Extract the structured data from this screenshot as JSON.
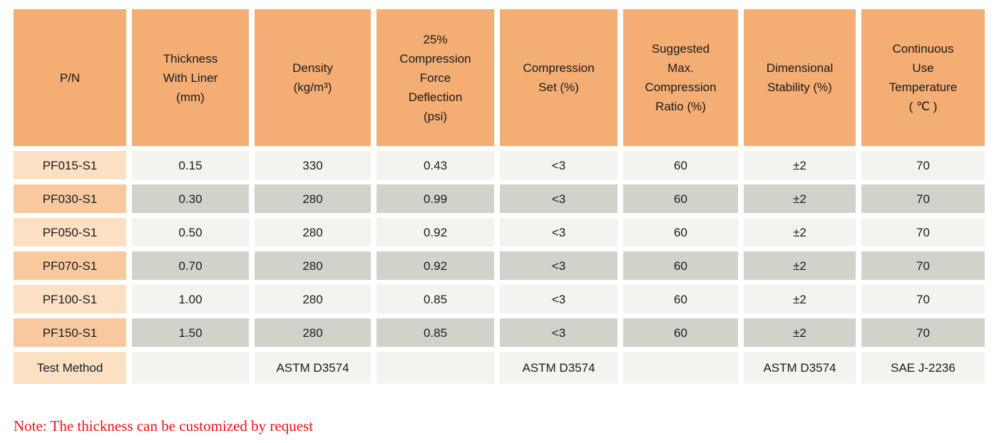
{
  "colors": {
    "header_orange": "#F4AD73",
    "peach_light": "#FCE0C3",
    "peach_medium": "#F8C99E",
    "gray_light": "#F3F3EF",
    "gray_dark": "#D2D2CB",
    "text_color": "#1B1B1B",
    "note_red": "#EE1111",
    "page_bg": "#FFFFFF"
  },
  "table": {
    "columns": [
      {
        "id": "pn",
        "label": "P/N"
      },
      {
        "id": "thickness-with-liner",
        "label": "Thickness\nWith Liner\n(mm)"
      },
      {
        "id": "density",
        "label": "Density\n(kg/m³)"
      },
      {
        "id": "compression-force-deflection",
        "label": "25%\nCompression\nForce\nDeflection\n(psi)"
      },
      {
        "id": "compression-set",
        "label": "Compression\nSet (%)"
      },
      {
        "id": "suggested-max-compression-ratio",
        "label": "Suggested\nMax.\nCompression\nRatio (%)"
      },
      {
        "id": "dimensional-stability",
        "label": "Dimensional\nStability (%)"
      },
      {
        "id": "continuous-use-temperature",
        "label": "Continuous\nUse\nTemperature\n( ℃ )"
      }
    ],
    "rows": [
      {
        "shade": "light",
        "cells": [
          "PF015-S1",
          "0.15",
          "330",
          "0.43",
          "<3",
          "60",
          "±2",
          "70"
        ]
      },
      {
        "shade": "dark",
        "cells": [
          "PF030-S1",
          "0.30",
          "280",
          "0.99",
          "<3",
          "60",
          "±2",
          "70"
        ]
      },
      {
        "shade": "light",
        "cells": [
          "PF050-S1",
          "0.50",
          "280",
          "0.92",
          "<3",
          "60",
          "±2",
          "70"
        ]
      },
      {
        "shade": "dark",
        "cells": [
          "PF070-S1",
          "0.70",
          "280",
          "0.92",
          "<3",
          "60",
          "±2",
          "70"
        ]
      },
      {
        "shade": "light",
        "cells": [
          "PF100-S1",
          "1.00",
          "280",
          "0.85",
          "<3",
          "60",
          "±2",
          "70"
        ]
      },
      {
        "shade": "dark",
        "cells": [
          "PF150-S1",
          "1.50",
          "280",
          "0.85",
          "<3",
          "60",
          "±2",
          "70"
        ]
      },
      {
        "shade": "light",
        "cells": [
          "Test Method",
          "",
          "ASTM D3574",
          "",
          "ASTM D3574",
          "",
          "ASTM D3574",
          "SAE J-2236"
        ]
      }
    ]
  },
  "note": {
    "text": "Note: The thickness can be customized by request"
  }
}
